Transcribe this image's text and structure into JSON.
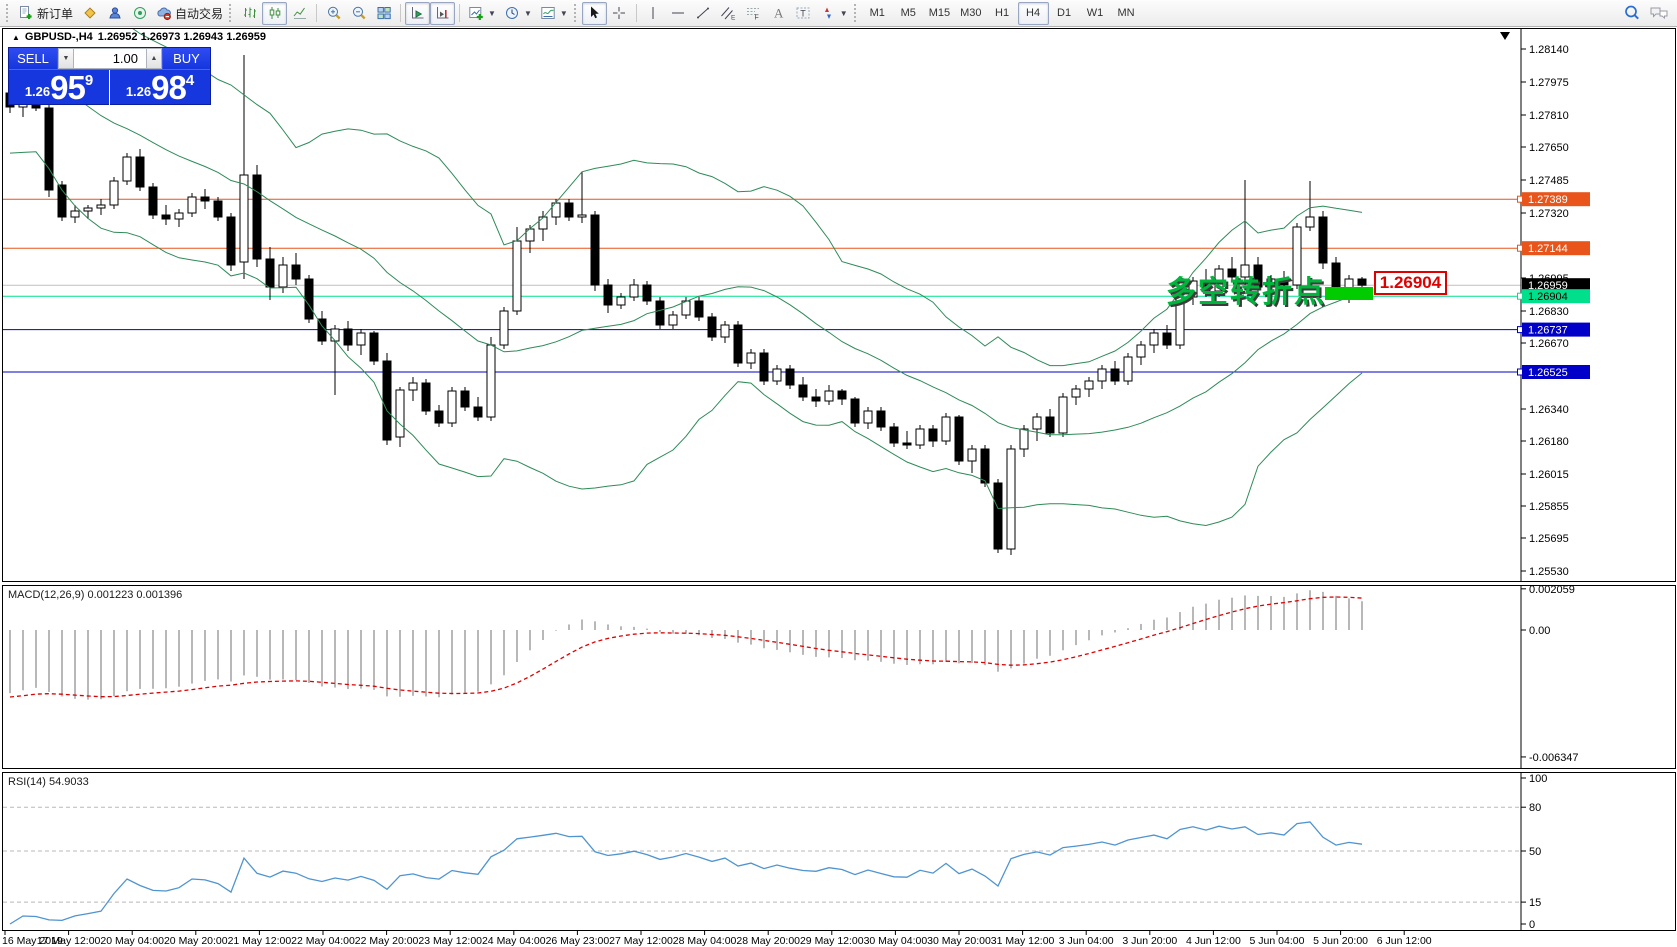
{
  "toolbar": {
    "new_order_label": "新订单",
    "auto_trading_label": "自动交易",
    "timeframes": [
      "M1",
      "M5",
      "M15",
      "M30",
      "H1",
      "H4",
      "D1",
      "W1",
      "MN"
    ],
    "active_timeframe": "H4",
    "icons": [
      "new-order-icon",
      "market-watch-icon",
      "profiles-icon",
      "signals-icon",
      "auto-trading-icon",
      "bar-chart-icon",
      "candlestick-chart-icon",
      "line-chart-icon",
      "zoom-in-icon",
      "zoom-out-icon",
      "tile-windows-icon",
      "auto-scroll-icon",
      "chart-shift-icon",
      "indicators-icon",
      "periods-icon",
      "templates-icon",
      "cursor-icon",
      "crosshair-icon",
      "vertical-line-icon",
      "horizontal-line-icon",
      "trendline-icon",
      "equidistant-channel-icon",
      "fibonacci-icon",
      "text-icon",
      "text-label-icon",
      "arrows-icon",
      "search-icon",
      "community-icon"
    ]
  },
  "quote_panel": {
    "sell_label": "SELL",
    "buy_label": "BUY",
    "volume": "1.00",
    "sell_small": "1.26",
    "sell_big": "95",
    "sell_sup": "9",
    "buy_small": "1.26",
    "buy_big": "98",
    "buy_sup": "4"
  },
  "chart_data": {
    "type": "candlestick",
    "symbol": "GBPUSD-",
    "timeframe": "H4",
    "title": "GBPUSD-,H4",
    "ohlc_text": "1.26952 1.26973 1.26943 1.26959",
    "current_price": "1.26959",
    "price_axis_ticks": [
      "1.28140",
      "1.27975",
      "1.27810",
      "1.27650",
      "1.27485",
      "1.27320",
      "1.26995",
      "1.26830",
      "1.26670",
      "1.26340",
      "1.26180",
      "1.26015",
      "1.25855",
      "1.25695",
      "1.25530"
    ],
    "time_axis_labels": [
      "16 May 2019",
      "17 May 12:00",
      "20 May 04:00",
      "20 May 20:00",
      "21 May 12:00",
      "22 May 04:00",
      "22 May 20:00",
      "23 May 12:00",
      "24 May 04:00",
      "26 May 23:00",
      "27 May 12:00",
      "28 May 04:00",
      "28 May 20:00",
      "29 May 12:00",
      "30 May 04:00",
      "30 May 20:00",
      "31 May 12:00",
      "3 Jun 04:00",
      "3 Jun 20:00",
      "4 Jun 12:00",
      "5 Jun 04:00",
      "5 Jun 20:00",
      "6 Jun 12:00"
    ],
    "levels": [
      {
        "price": 1.27389,
        "label": "1.27389",
        "color": "#E8541A",
        "text_color": "#ffffff"
      },
      {
        "price": 1.27144,
        "label": "1.27144",
        "color": "#E8541A",
        "text_color": "#ffffff"
      },
      {
        "price": 1.26959,
        "label": "1.26959",
        "color": "#000000",
        "text_color": "#ffffff",
        "line_color": "#c0c0c0",
        "current": true
      },
      {
        "price": 1.26904,
        "label": "1.26904",
        "color": "#00E08C",
        "text_color": "#000000"
      },
      {
        "price": 1.26737,
        "label": "1.26737",
        "color": "#0000C8",
        "text_color": "#ffffff"
      },
      {
        "price": 1.26525,
        "label": "1.26525",
        "color": "#0000C8",
        "text_color": "#ffffff"
      }
    ],
    "warmup_closes": [
      1.299,
      1.2984,
      1.2978,
      1.2972,
      1.2966,
      1.296,
      1.2954,
      1.2948,
      1.2942,
      1.2936,
      1.293,
      1.2924,
      1.2918,
      1.2912,
      1.2906,
      1.29,
      1.2894,
      1.2888,
      1.2882,
      1.2876,
      1.287,
      1.2864,
      1.2858,
      1.2852,
      1.2846,
      1.284,
      1.2834,
      1.2828,
      1.2822,
      1.2816,
      1.281,
      1.2805,
      1.28,
      1.2796,
      1.2793,
      1.279,
      1.2788,
      1.2787,
      1.2786,
      1.2786
    ],
    "candles": [
      [
        1.2792,
        1.2795,
        1.2782,
        1.2785
      ],
      [
        1.2785,
        1.279,
        1.278,
        1.2788
      ],
      [
        1.2788,
        1.2789,
        1.2783,
        1.27845
      ],
      [
        1.27845,
        1.27885,
        1.274,
        1.27435
      ],
      [
        1.2746,
        1.2748,
        1.2728,
        1.273
      ],
      [
        1.273,
        1.2736,
        1.2727,
        1.2733
      ],
      [
        1.2733,
        1.2736,
        1.2729,
        1.27345
      ],
      [
        1.27345,
        1.2739,
        1.2731,
        1.2736
      ],
      [
        1.2736,
        1.275,
        1.2734,
        1.2748
      ],
      [
        1.2748,
        1.2762,
        1.2746,
        1.276
      ],
      [
        1.276,
        1.2764,
        1.2743,
        1.2745
      ],
      [
        1.2745,
        1.2747,
        1.2729,
        1.2731
      ],
      [
        1.2731,
        1.2736,
        1.2726,
        1.2729
      ],
      [
        1.2729,
        1.2734,
        1.2725,
        1.2732
      ],
      [
        1.2732,
        1.2742,
        1.273,
        1.274
      ],
      [
        1.274,
        1.2744,
        1.2734,
        1.2738
      ],
      [
        1.2738,
        1.274,
        1.2728,
        1.273
      ],
      [
        1.273,
        1.2732,
        1.2703,
        1.2706
      ],
      [
        1.27075,
        1.2811,
        1.2699,
        1.2751
      ],
      [
        1.2751,
        1.2756,
        1.2705,
        1.2709
      ],
      [
        1.2709,
        1.2715,
        1.26885,
        1.2695
      ],
      [
        1.2695,
        1.271,
        1.2692,
        1.2706
      ],
      [
        1.2706,
        1.2712,
        1.2696,
        1.2699
      ],
      [
        1.2699,
        1.2701,
        1.2677,
        1.2679
      ],
      [
        1.2679,
        1.2683,
        1.2666,
        1.2668
      ],
      [
        1.2668,
        1.2676,
        1.2641,
        1.2674
      ],
      [
        1.2674,
        1.2678,
        1.2663,
        1.2666
      ],
      [
        1.2666,
        1.2674,
        1.2661,
        1.2672
      ],
      [
        1.2672,
        1.2673,
        1.2656,
        1.2658
      ],
      [
        1.2658,
        1.2662,
        1.2616,
        1.26185
      ],
      [
        1.262,
        1.2645,
        1.2615,
        1.26435
      ],
      [
        1.26435,
        1.265,
        1.2638,
        1.2647
      ],
      [
        1.2647,
        1.2649,
        1.2631,
        1.2633
      ],
      [
        1.2633,
        1.2636,
        1.2625,
        1.2627
      ],
      [
        1.2627,
        1.2645,
        1.2625,
        1.2643
      ],
      [
        1.2643,
        1.2645,
        1.2633,
        1.2635
      ],
      [
        1.2635,
        1.264,
        1.2628,
        1.263
      ],
      [
        1.263,
        1.267,
        1.2628,
        1.2666
      ],
      [
        1.2666,
        1.2685,
        1.2664,
        1.2683
      ],
      [
        1.2683,
        1.2725,
        1.2681,
        1.2718
      ],
      [
        1.2718,
        1.2726,
        1.2712,
        1.2724
      ],
      [
        1.2724,
        1.2733,
        1.2718,
        1.273
      ],
      [
        1.273,
        1.2739,
        1.2726,
        1.2737
      ],
      [
        1.2737,
        1.2739,
        1.2728,
        1.273
      ],
      [
        1.273,
        1.27525,
        1.2727,
        1.2731
      ],
      [
        1.2731,
        1.2733,
        1.2693,
        1.2696
      ],
      [
        1.2696,
        1.2699,
        1.2682,
        1.2686
      ],
      [
        1.2686,
        1.2692,
        1.2684,
        1.269
      ],
      [
        1.269,
        1.2699,
        1.2688,
        1.2696
      ],
      [
        1.2696,
        1.2698,
        1.2686,
        1.2688
      ],
      [
        1.2688,
        1.269,
        1.2674,
        1.2676
      ],
      [
        1.2676,
        1.2683,
        1.2674,
        1.2681
      ],
      [
        1.2681,
        1.269,
        1.2679,
        1.2688
      ],
      [
        1.2688,
        1.269,
        1.2678,
        1.268
      ],
      [
        1.268,
        1.2682,
        1.2668,
        1.267
      ],
      [
        1.267,
        1.2678,
        1.2667,
        1.2676
      ],
      [
        1.2676,
        1.2678,
        1.2655,
        1.2657
      ],
      [
        1.2657,
        1.2664,
        1.2654,
        1.2662
      ],
      [
        1.2662,
        1.2664,
        1.2646,
        1.2648
      ],
      [
        1.2648,
        1.2656,
        1.2646,
        1.2654
      ],
      [
        1.2654,
        1.2656,
        1.2644,
        1.2646
      ],
      [
        1.2646,
        1.265,
        1.2638,
        1.264
      ],
      [
        1.264,
        1.2644,
        1.2635,
        1.2638
      ],
      [
        1.2638,
        1.2646,
        1.2636,
        1.2643
      ],
      [
        1.2643,
        1.2644,
        1.2636,
        1.2639
      ],
      [
        1.2639,
        1.264,
        1.2625,
        1.2627
      ],
      [
        1.2627,
        1.2635,
        1.2624,
        1.2633
      ],
      [
        1.2633,
        1.2635,
        1.2623,
        1.2625
      ],
      [
        1.2625,
        1.2627,
        1.2615,
        1.2617
      ],
      [
        1.2617,
        1.2623,
        1.2614,
        1.2616
      ],
      [
        1.2616,
        1.2626,
        1.2614,
        1.2624
      ],
      [
        1.2624,
        1.2626,
        1.2615,
        1.2618
      ],
      [
        1.2618,
        1.2632,
        1.2616,
        1.263
      ],
      [
        1.263,
        1.2631,
        1.2606,
        1.2608
      ],
      [
        1.2608,
        1.2616,
        1.2602,
        1.2614
      ],
      [
        1.2614,
        1.2616,
        1.2595,
        1.2597
      ],
      [
        1.2597,
        1.2599,
        1.2562,
        1.2564
      ],
      [
        1.2564,
        1.2616,
        1.2561,
        1.2614
      ],
      [
        1.2614,
        1.2626,
        1.261,
        1.2624
      ],
      [
        1.2624,
        1.2632,
        1.2618,
        1.263
      ],
      [
        1.263,
        1.2634,
        1.262,
        1.2622
      ],
      [
        1.2622,
        1.2642,
        1.262,
        1.264
      ],
      [
        1.264,
        1.2646,
        1.2636,
        1.2644
      ],
      [
        1.2644,
        1.265,
        1.264,
        1.2648
      ],
      [
        1.2648,
        1.2656,
        1.2644,
        1.2654
      ],
      [
        1.2654,
        1.2658,
        1.2646,
        1.2648
      ],
      [
        1.2648,
        1.2662,
        1.2646,
        1.266
      ],
      [
        1.266,
        1.2668,
        1.2656,
        1.2666
      ],
      [
        1.2666,
        1.2674,
        1.2662,
        1.2672
      ],
      [
        1.2672,
        1.2676,
        1.2664,
        1.2666
      ],
      [
        1.2666,
        1.2692,
        1.2664,
        1.269
      ],
      [
        1.269,
        1.27,
        1.2686,
        1.2698
      ],
      [
        1.2698,
        1.2704,
        1.269,
        1.2693
      ],
      [
        1.2693,
        1.2706,
        1.269,
        1.2704
      ],
      [
        1.2704,
        1.271,
        1.2698,
        1.27
      ],
      [
        1.27,
        1.27485,
        1.2696,
        1.2706
      ],
      [
        1.2706,
        1.271,
        1.2692,
        1.2695
      ],
      [
        1.2695,
        1.2701,
        1.2689,
        1.2699
      ],
      [
        1.2699,
        1.2703,
        1.2693,
        1.2696
      ],
      [
        1.2696,
        1.2727,
        1.2694,
        1.2725
      ],
      [
        1.2725,
        1.2748,
        1.2723,
        1.273
      ],
      [
        1.273,
        1.2733,
        1.2704,
        1.2707
      ],
      [
        1.2707,
        1.271,
        1.269,
        1.2693
      ],
      [
        1.2693,
        1.2701,
        1.2687,
        1.2699
      ],
      [
        1.2699,
        1.27,
        1.2689,
        1.26959
      ]
    ],
    "indicators": {
      "bollinger": {
        "period": 20,
        "deviation": 2,
        "color": "#2e8b57",
        "derived_from_candles": true
      },
      "macd": {
        "label": "MACD(12,26,9) 0.001223 0.001396",
        "fast": 12,
        "slow": 26,
        "signal": 9,
        "hist_color": "#b8b8b8",
        "signal_color": "#e00000",
        "axis": [
          {
            "text": "0.002059",
            "v": 0.002059
          },
          {
            "text": "0.00",
            "v": 0
          },
          {
            "text": "-0.006347",
            "v": -0.006347
          }
        ],
        "derived_from_candles": true
      },
      "rsi": {
        "label": "RSI(14) 54.9033",
        "period": 14,
        "color": "#4f94d0",
        "axis": [
          {
            "text": "100",
            "v": 100
          },
          {
            "text": "80",
            "v": 80,
            "line": true
          },
          {
            "text": "50",
            "v": 50,
            "line": true
          },
          {
            "text": "15",
            "v": 15,
            "line": true
          },
          {
            "text": "0",
            "v": 0
          }
        ],
        "derived_from_candles": true
      }
    },
    "annotation": {
      "text": "多空转折点",
      "color": "#00b43c"
    },
    "callout": {
      "text": "1.26904",
      "color": "#e00000"
    },
    "highlight": {
      "color": "#00cc00"
    }
  }
}
